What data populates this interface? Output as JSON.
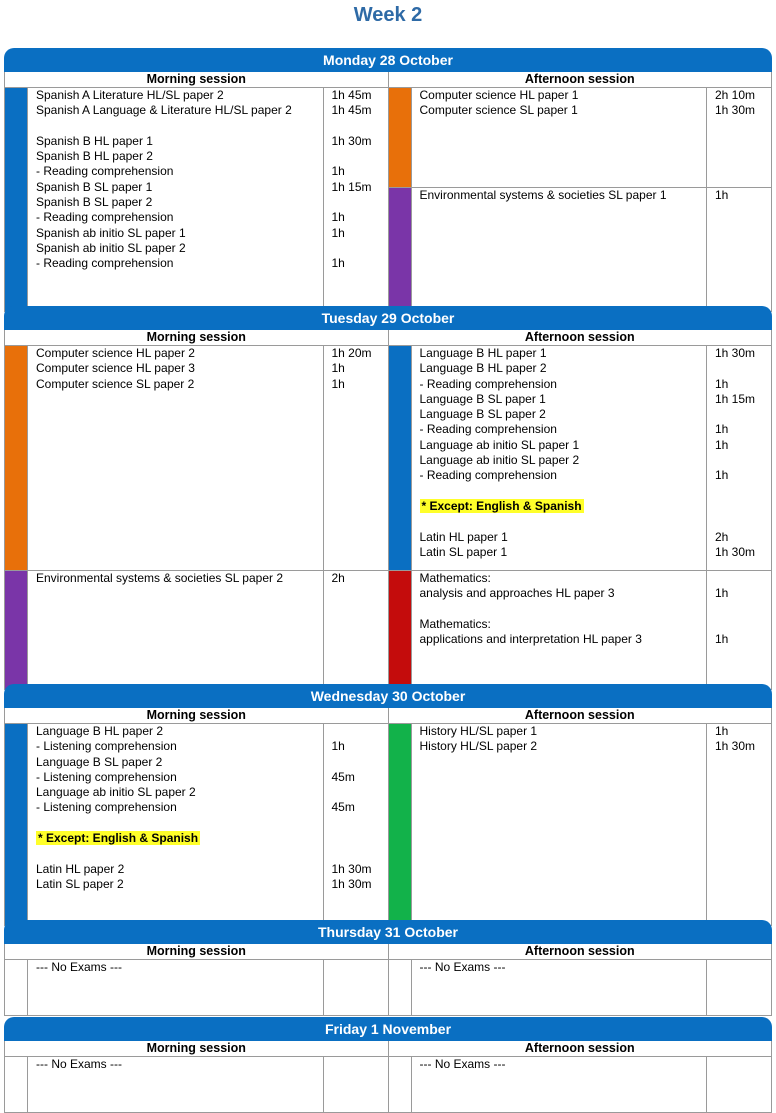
{
  "page_title": "Week 2",
  "session_labels": {
    "morning": "Morning session",
    "afternoon": "Afternoon session"
  },
  "colors": {
    "header_blue": "#0a6fc2",
    "blue": "#0a6fc2",
    "orange": "#e8700a",
    "purple": "#7a35a8",
    "red": "#c40c0c",
    "green": "#12b24a",
    "highlight": "#ffff2a"
  },
  "days": [
    {
      "title": "Monday 28 October",
      "morning": [
        {
          "color": "blue",
          "rows": [
            {
              "s": "Spanish A Literature HL/SL paper 2",
              "d": "1h 45m"
            },
            {
              "s": "Spanish A Language & Literature HL/SL paper 2",
              "d": "1h 45m"
            },
            {
              "s": "",
              "d": ""
            },
            {
              "s": "Spanish B HL paper 1",
              "d": "1h 30m"
            },
            {
              "s": "Spanish B HL paper 2",
              "d": ""
            },
            {
              "s": "- Reading comprehension",
              "d": "1h"
            },
            {
              "s": "Spanish B SL paper 1",
              "d": "1h 15m"
            },
            {
              "s": "Spanish B SL paper 2",
              "d": ""
            },
            {
              "s": "- Reading comprehension",
              "d": "1h"
            },
            {
              "s": "Spanish ab initio SL paper 1",
              "d": "1h"
            },
            {
              "s": "Spanish ab initio SL paper 2",
              "d": ""
            },
            {
              "s": "- Reading comprehension",
              "d": "1h"
            }
          ]
        }
      ],
      "afternoon": [
        {
          "color": "orange",
          "rows": [
            {
              "s": "Computer science HL paper 1",
              "d": "2h 10m"
            },
            {
              "s": "Computer science SL paper 1",
              "d": "1h 30m"
            }
          ]
        },
        {
          "color": "purple",
          "rows": [
            {
              "s": "Environmental systems & societies SL paper 1",
              "d": "1h"
            }
          ]
        }
      ]
    },
    {
      "title": "Tuesday 29 October",
      "morning": [
        {
          "color": "orange",
          "rows": [
            {
              "s": "Computer science HL paper 2",
              "d": "1h 20m"
            },
            {
              "s": "Computer science HL paper 3",
              "d": "1h"
            },
            {
              "s": "Computer science SL paper 2",
              "d": "1h"
            }
          ]
        },
        {
          "color": "purple",
          "rows": [
            {
              "s": "Environmental systems & societies SL paper 2",
              "d": "2h"
            }
          ]
        }
      ],
      "afternoon": [
        {
          "color": "blue",
          "rows": [
            {
              "s": "Language B HL paper 1",
              "d": "1h 30m"
            },
            {
              "s": "Language B HL paper 2",
              "d": ""
            },
            {
              "s": "- Reading comprehension",
              "d": "1h"
            },
            {
              "s": "Language B SL paper 1",
              "d": "1h 15m"
            },
            {
              "s": "Language B SL paper 2",
              "d": ""
            },
            {
              "s": "- Reading comprehension",
              "d": "1h"
            },
            {
              "s": "Language ab initio SL paper 1",
              "d": "1h"
            },
            {
              "s": "Language ab initio SL paper 2",
              "d": ""
            },
            {
              "s": "- Reading comprehension",
              "d": "1h"
            },
            {
              "s": "",
              "d": ""
            },
            {
              "s": "* Except: English & Spanish",
              "d": "",
              "hl": true
            },
            {
              "s": "",
              "d": ""
            },
            {
              "s": "Latin HL paper 1",
              "d": "2h"
            },
            {
              "s": "Latin SL paper 1",
              "d": "1h 30m"
            }
          ]
        },
        {
          "color": "red",
          "rows": [
            {
              "s": "Mathematics:",
              "d": ""
            },
            {
              "s": "analysis and approaches HL paper 3",
              "d": "1h"
            },
            {
              "s": "",
              "d": ""
            },
            {
              "s": "Mathematics:",
              "d": ""
            },
            {
              "s": "applications and interpretation HL paper 3",
              "d": "1h"
            }
          ]
        }
      ]
    },
    {
      "title": "Wednesday 30 October",
      "morning": [
        {
          "color": "blue",
          "rows": [
            {
              "s": "Language B HL paper 2",
              "d": ""
            },
            {
              "s": "- Listening comprehension",
              "d": "1h"
            },
            {
              "s": "Language B SL paper 2",
              "d": ""
            },
            {
              "s": "- Listening comprehension",
              "d": "45m"
            },
            {
              "s": "Language ab initio SL paper 2",
              "d": ""
            },
            {
              "s": "- Listening comprehension",
              "d": "45m"
            },
            {
              "s": "",
              "d": ""
            },
            {
              "s": "* Except: English & Spanish",
              "d": "",
              "hl": true
            },
            {
              "s": "",
              "d": ""
            },
            {
              "s": "Latin HL paper 2",
              "d": "1h 30m"
            },
            {
              "s": "Latin SL paper 2",
              "d": "1h 30m"
            }
          ]
        }
      ],
      "afternoon": [
        {
          "color": "green",
          "rows": [
            {
              "s": "History HL/SL paper 1",
              "d": "1h"
            },
            {
              "s": "History HL/SL paper 2",
              "d": "1h 30m"
            }
          ]
        }
      ]
    },
    {
      "title": "Thursday 31 October",
      "morning": [
        {
          "color": "",
          "rows": [
            {
              "s": "--- No Exams ---",
              "d": ""
            }
          ]
        }
      ],
      "afternoon": [
        {
          "color": "",
          "rows": [
            {
              "s": "--- No Exams ---",
              "d": ""
            }
          ]
        }
      ]
    },
    {
      "title": "Friday 1 November",
      "morning": [
        {
          "color": "",
          "rows": [
            {
              "s": "--- No Exams ---",
              "d": ""
            }
          ]
        }
      ],
      "afternoon": [
        {
          "color": "",
          "rows": [
            {
              "s": "--- No Exams ---",
              "d": ""
            }
          ]
        }
      ]
    }
  ]
}
